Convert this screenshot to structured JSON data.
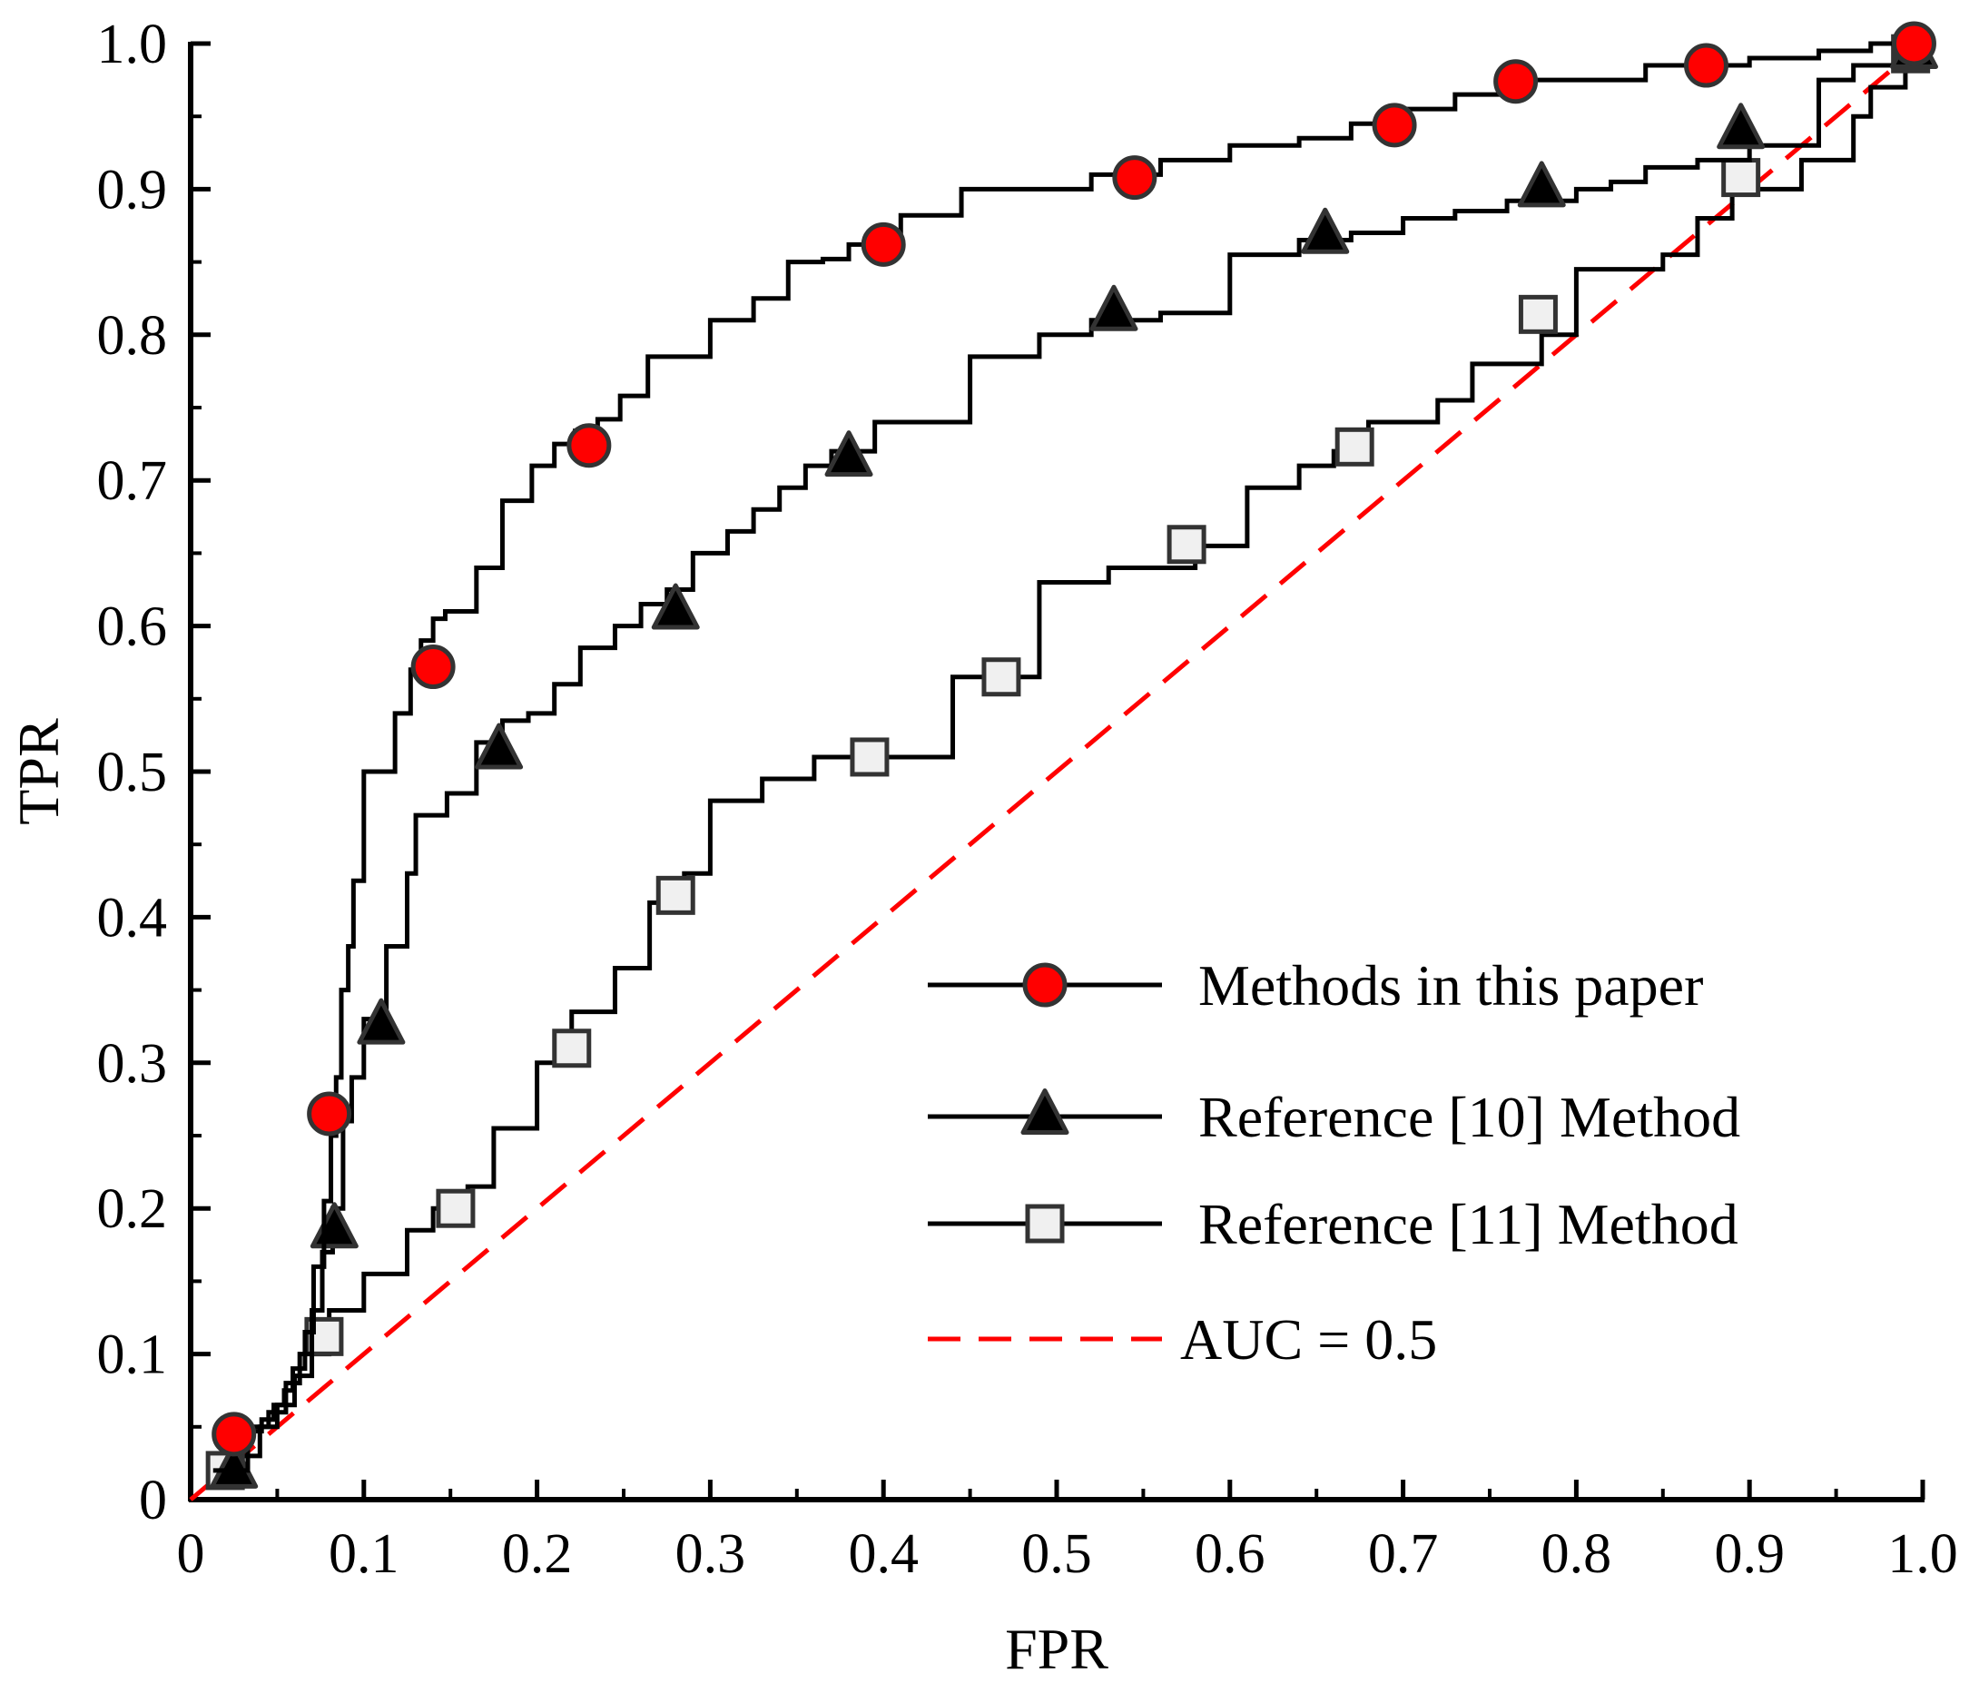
{
  "chart_data": {
    "type": "line",
    "title": "",
    "xlabel": "FPR",
    "ylabel": "TPR",
    "xlim": [
      0,
      1.0
    ],
    "ylim": [
      0,
      1.0
    ],
    "grid": false,
    "x_ticks": [
      0,
      0.1,
      0.2,
      0.3,
      0.4,
      0.5,
      0.6,
      0.7,
      0.8,
      0.9,
      1.0
    ],
    "x_tick_labels": [
      "0",
      "0.1",
      "0.2",
      "0.3",
      "0.4",
      "0.5",
      "0.6",
      "0.7",
      "0.8",
      "0.9",
      "1.0"
    ],
    "y_ticks": [
      0,
      0.1,
      0.2,
      0.3,
      0.4,
      0.5,
      0.6,
      0.7,
      0.8,
      0.9,
      1.0
    ],
    "y_tick_labels": [
      "0",
      "0.1",
      "0.2",
      "0.3",
      "0.4",
      "0.5",
      "0.6",
      "0.7",
      "0.8",
      "0.9",
      "1.0"
    ],
    "legend_position": "bottom-right",
    "series": [
      {
        "name": "Methods in this paper",
        "style": "step",
        "marker": "circle",
        "line_color": "#000000",
        "marker_fill": "#ff0000",
        "marker_stroke": "#333333",
        "x": [
          0.013,
          0.033,
          0.041,
          0.048,
          0.054,
          0.059,
          0.066,
          0.071,
          0.077,
          0.081,
          0.084,
          0.087,
          0.091,
          0.094,
          0.1,
          0.107,
          0.118,
          0.127,
          0.133,
          0.14,
          0.147,
          0.165,
          0.18,
          0.197,
          0.21,
          0.222,
          0.235,
          0.248,
          0.264,
          0.28,
          0.3,
          0.325,
          0.345,
          0.365,
          0.38,
          0.41,
          0.445,
          0.475,
          0.52,
          0.56,
          0.6,
          0.64,
          0.67,
          0.7,
          0.73,
          0.77,
          0.84,
          0.9,
          0.94,
          0.97,
          0.99
        ],
        "y": [
          0.02,
          0.047,
          0.055,
          0.065,
          0.075,
          0.09,
          0.115,
          0.16,
          0.205,
          0.25,
          0.29,
          0.35,
          0.38,
          0.425,
          0.5,
          0.5,
          0.54,
          0.57,
          0.59,
          0.605,
          0.61,
          0.64,
          0.686,
          0.71,
          0.725,
          0.734,
          0.742,
          0.758,
          0.785,
          0.785,
          0.81,
          0.825,
          0.85,
          0.852,
          0.862,
          0.882,
          0.9,
          0.9,
          0.91,
          0.92,
          0.93,
          0.935,
          0.945,
          0.955,
          0.965,
          0.975,
          0.985,
          0.99,
          0.995,
          1.0,
          1.0
        ],
        "markers_at": [
          {
            "x": 0.025,
            "y": 0.045
          },
          {
            "x": 0.08,
            "y": 0.265
          },
          {
            "x": 0.14,
            "y": 0.572
          },
          {
            "x": 0.23,
            "y": 0.724
          },
          {
            "x": 0.4,
            "y": 0.862
          },
          {
            "x": 0.545,
            "y": 0.908
          },
          {
            "x": 0.695,
            "y": 0.944
          },
          {
            "x": 0.765,
            "y": 0.974
          },
          {
            "x": 0.875,
            "y": 0.985
          },
          {
            "x": 0.995,
            "y": 1.0
          }
        ]
      },
      {
        "name": "Reference [10] Method",
        "style": "step",
        "marker": "triangle",
        "line_color": "#000000",
        "marker_fill": "#000000",
        "marker_stroke": "#333333",
        "x": [
          0.013,
          0.033,
          0.045,
          0.055,
          0.063,
          0.07,
          0.076,
          0.082,
          0.088,
          0.093,
          0.1,
          0.113,
          0.125,
          0.13,
          0.148,
          0.165,
          0.18,
          0.195,
          0.21,
          0.225,
          0.245,
          0.26,
          0.275,
          0.29,
          0.31,
          0.325,
          0.34,
          0.355,
          0.37,
          0.395,
          0.43,
          0.45,
          0.49,
          0.52,
          0.56,
          0.6,
          0.64,
          0.67,
          0.7,
          0.73,
          0.76,
          0.8,
          0.82,
          0.84,
          0.87,
          0.9,
          0.94,
          0.96,
          0.99
        ],
        "y": [
          0.01,
          0.05,
          0.06,
          0.08,
          0.1,
          0.13,
          0.17,
          0.2,
          0.26,
          0.29,
          0.33,
          0.38,
          0.43,
          0.47,
          0.485,
          0.52,
          0.535,
          0.54,
          0.56,
          0.585,
          0.6,
          0.615,
          0.625,
          0.65,
          0.665,
          0.68,
          0.695,
          0.71,
          0.72,
          0.74,
          0.74,
          0.785,
          0.8,
          0.81,
          0.815,
          0.855,
          0.865,
          0.87,
          0.88,
          0.885,
          0.892,
          0.9,
          0.905,
          0.915,
          0.92,
          0.93,
          0.975,
          0.985,
          0.985
        ],
        "markers_at": [
          {
            "x": 0.025,
            "y": 0.02
          },
          {
            "x": 0.083,
            "y": 0.185
          },
          {
            "x": 0.11,
            "y": 0.325
          },
          {
            "x": 0.178,
            "y": 0.514
          },
          {
            "x": 0.28,
            "y": 0.61
          },
          {
            "x": 0.38,
            "y": 0.715
          },
          {
            "x": 0.533,
            "y": 0.815
          },
          {
            "x": 0.655,
            "y": 0.868
          },
          {
            "x": 0.78,
            "y": 0.9
          },
          {
            "x": 0.895,
            "y": 0.94
          },
          {
            "x": 0.995,
            "y": 0.995
          }
        ]
      },
      {
        "name": "Reference [11] Method",
        "style": "step",
        "marker": "square",
        "line_color": "#000000",
        "marker_fill": "#f0f0f0",
        "marker_stroke": "#333333",
        "x": [
          0.013,
          0.03,
          0.04,
          0.05,
          0.06,
          0.07,
          0.08,
          0.1,
          0.125,
          0.14,
          0.16,
          0.175,
          0.2,
          0.22,
          0.245,
          0.265,
          0.285,
          0.3,
          0.33,
          0.36,
          0.39,
          0.41,
          0.44,
          0.47,
          0.49,
          0.53,
          0.58,
          0.61,
          0.64,
          0.66,
          0.68,
          0.72,
          0.74,
          0.78,
          0.8,
          0.83,
          0.85,
          0.87,
          0.89,
          0.93,
          0.96,
          0.97,
          0.99
        ],
        "y": [
          0.01,
          0.03,
          0.05,
          0.065,
          0.085,
          0.1,
          0.13,
          0.155,
          0.185,
          0.2,
          0.215,
          0.255,
          0.3,
          0.335,
          0.365,
          0.41,
          0.43,
          0.48,
          0.495,
          0.51,
          0.51,
          0.51,
          0.565,
          0.565,
          0.63,
          0.64,
          0.655,
          0.695,
          0.71,
          0.72,
          0.74,
          0.755,
          0.78,
          0.8,
          0.845,
          0.845,
          0.855,
          0.88,
          0.9,
          0.92,
          0.95,
          0.97,
          0.99
        ],
        "markers_at": [
          {
            "x": 0.02,
            "y": 0.02
          },
          {
            "x": 0.077,
            "y": 0.112
          },
          {
            "x": 0.153,
            "y": 0.2
          },
          {
            "x": 0.22,
            "y": 0.31
          },
          {
            "x": 0.28,
            "y": 0.415
          },
          {
            "x": 0.392,
            "y": 0.51
          },
          {
            "x": 0.468,
            "y": 0.565
          },
          {
            "x": 0.575,
            "y": 0.656
          },
          {
            "x": 0.672,
            "y": 0.723
          },
          {
            "x": 0.778,
            "y": 0.814
          },
          {
            "x": 0.895,
            "y": 0.908
          },
          {
            "x": 0.993,
            "y": 0.993
          }
        ]
      },
      {
        "name": "AUC = 0.5",
        "style": "dashed",
        "marker": "none",
        "line_color": "#ff0000",
        "x": [
          0.0,
          1.0
        ],
        "y": [
          0.0,
          1.0
        ]
      }
    ]
  }
}
